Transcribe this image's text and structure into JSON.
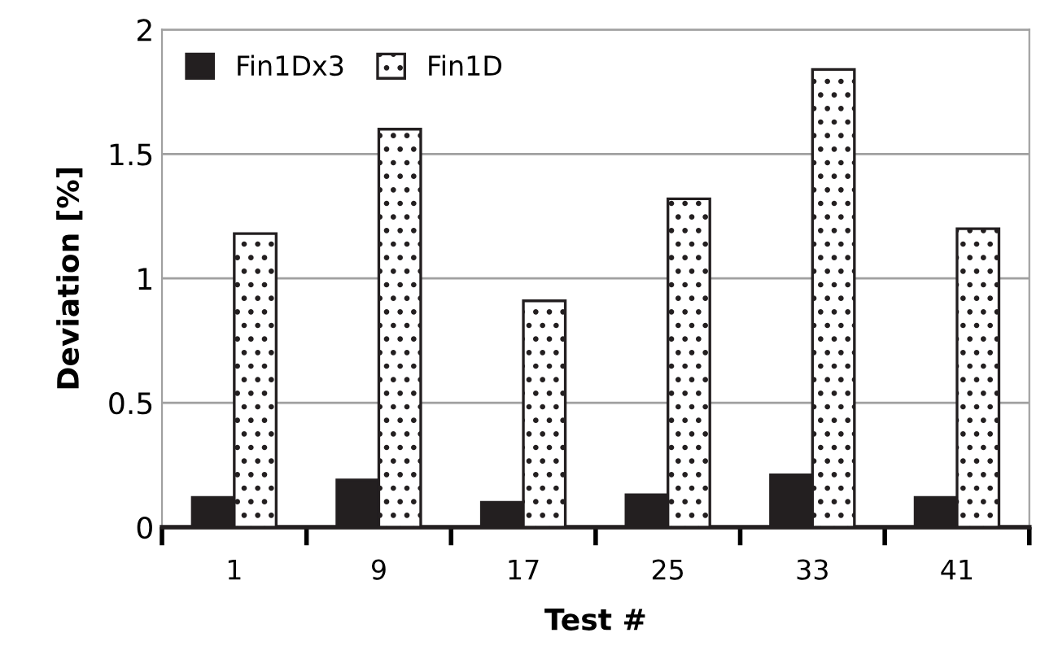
{
  "chart_data": {
    "type": "bar",
    "xlabel": "Test #",
    "ylabel": "Deviation [%]",
    "categories": [
      "1",
      "9",
      "17",
      "25",
      "33",
      "41"
    ],
    "series": [
      {
        "name": "Fin1Dx3",
        "color": "#231f20",
        "values": [
          0.12,
          0.19,
          0.1,
          0.13,
          0.21,
          0.12
        ]
      },
      {
        "name": "Fin1D",
        "color": "#231f20",
        "values": [
          1.18,
          1.6,
          0.91,
          1.32,
          1.84,
          1.2
        ]
      }
    ],
    "ylim": [
      0,
      2
    ],
    "yticks": [
      0,
      0.5,
      1,
      1.5,
      2
    ],
    "grid": "y",
    "legend": "top left"
  }
}
